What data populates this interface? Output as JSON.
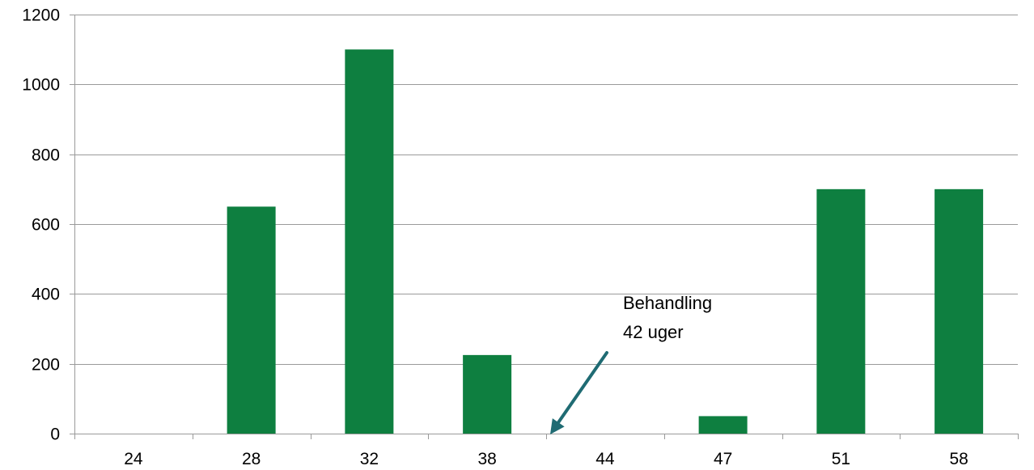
{
  "chart_data": {
    "type": "bar",
    "title": "",
    "xlabel": "",
    "ylabel": "",
    "categories": [
      "24",
      "28",
      "32",
      "38",
      "44",
      "47",
      "51",
      "58"
    ],
    "values": [
      0,
      650,
      1100,
      225,
      0,
      50,
      700,
      700
    ],
    "ylim": [
      0,
      1200
    ],
    "yticks": [
      0,
      200,
      400,
      600,
      800,
      1000,
      1200
    ],
    "grid": true,
    "bar_color": "#0e7f40",
    "grid_color": "#9a9a9a",
    "annotation": {
      "line1": "Behandling",
      "line2": "42 uger",
      "arrow_color": "#1f6b73",
      "points_to_between": [
        "38",
        "44"
      ]
    }
  }
}
